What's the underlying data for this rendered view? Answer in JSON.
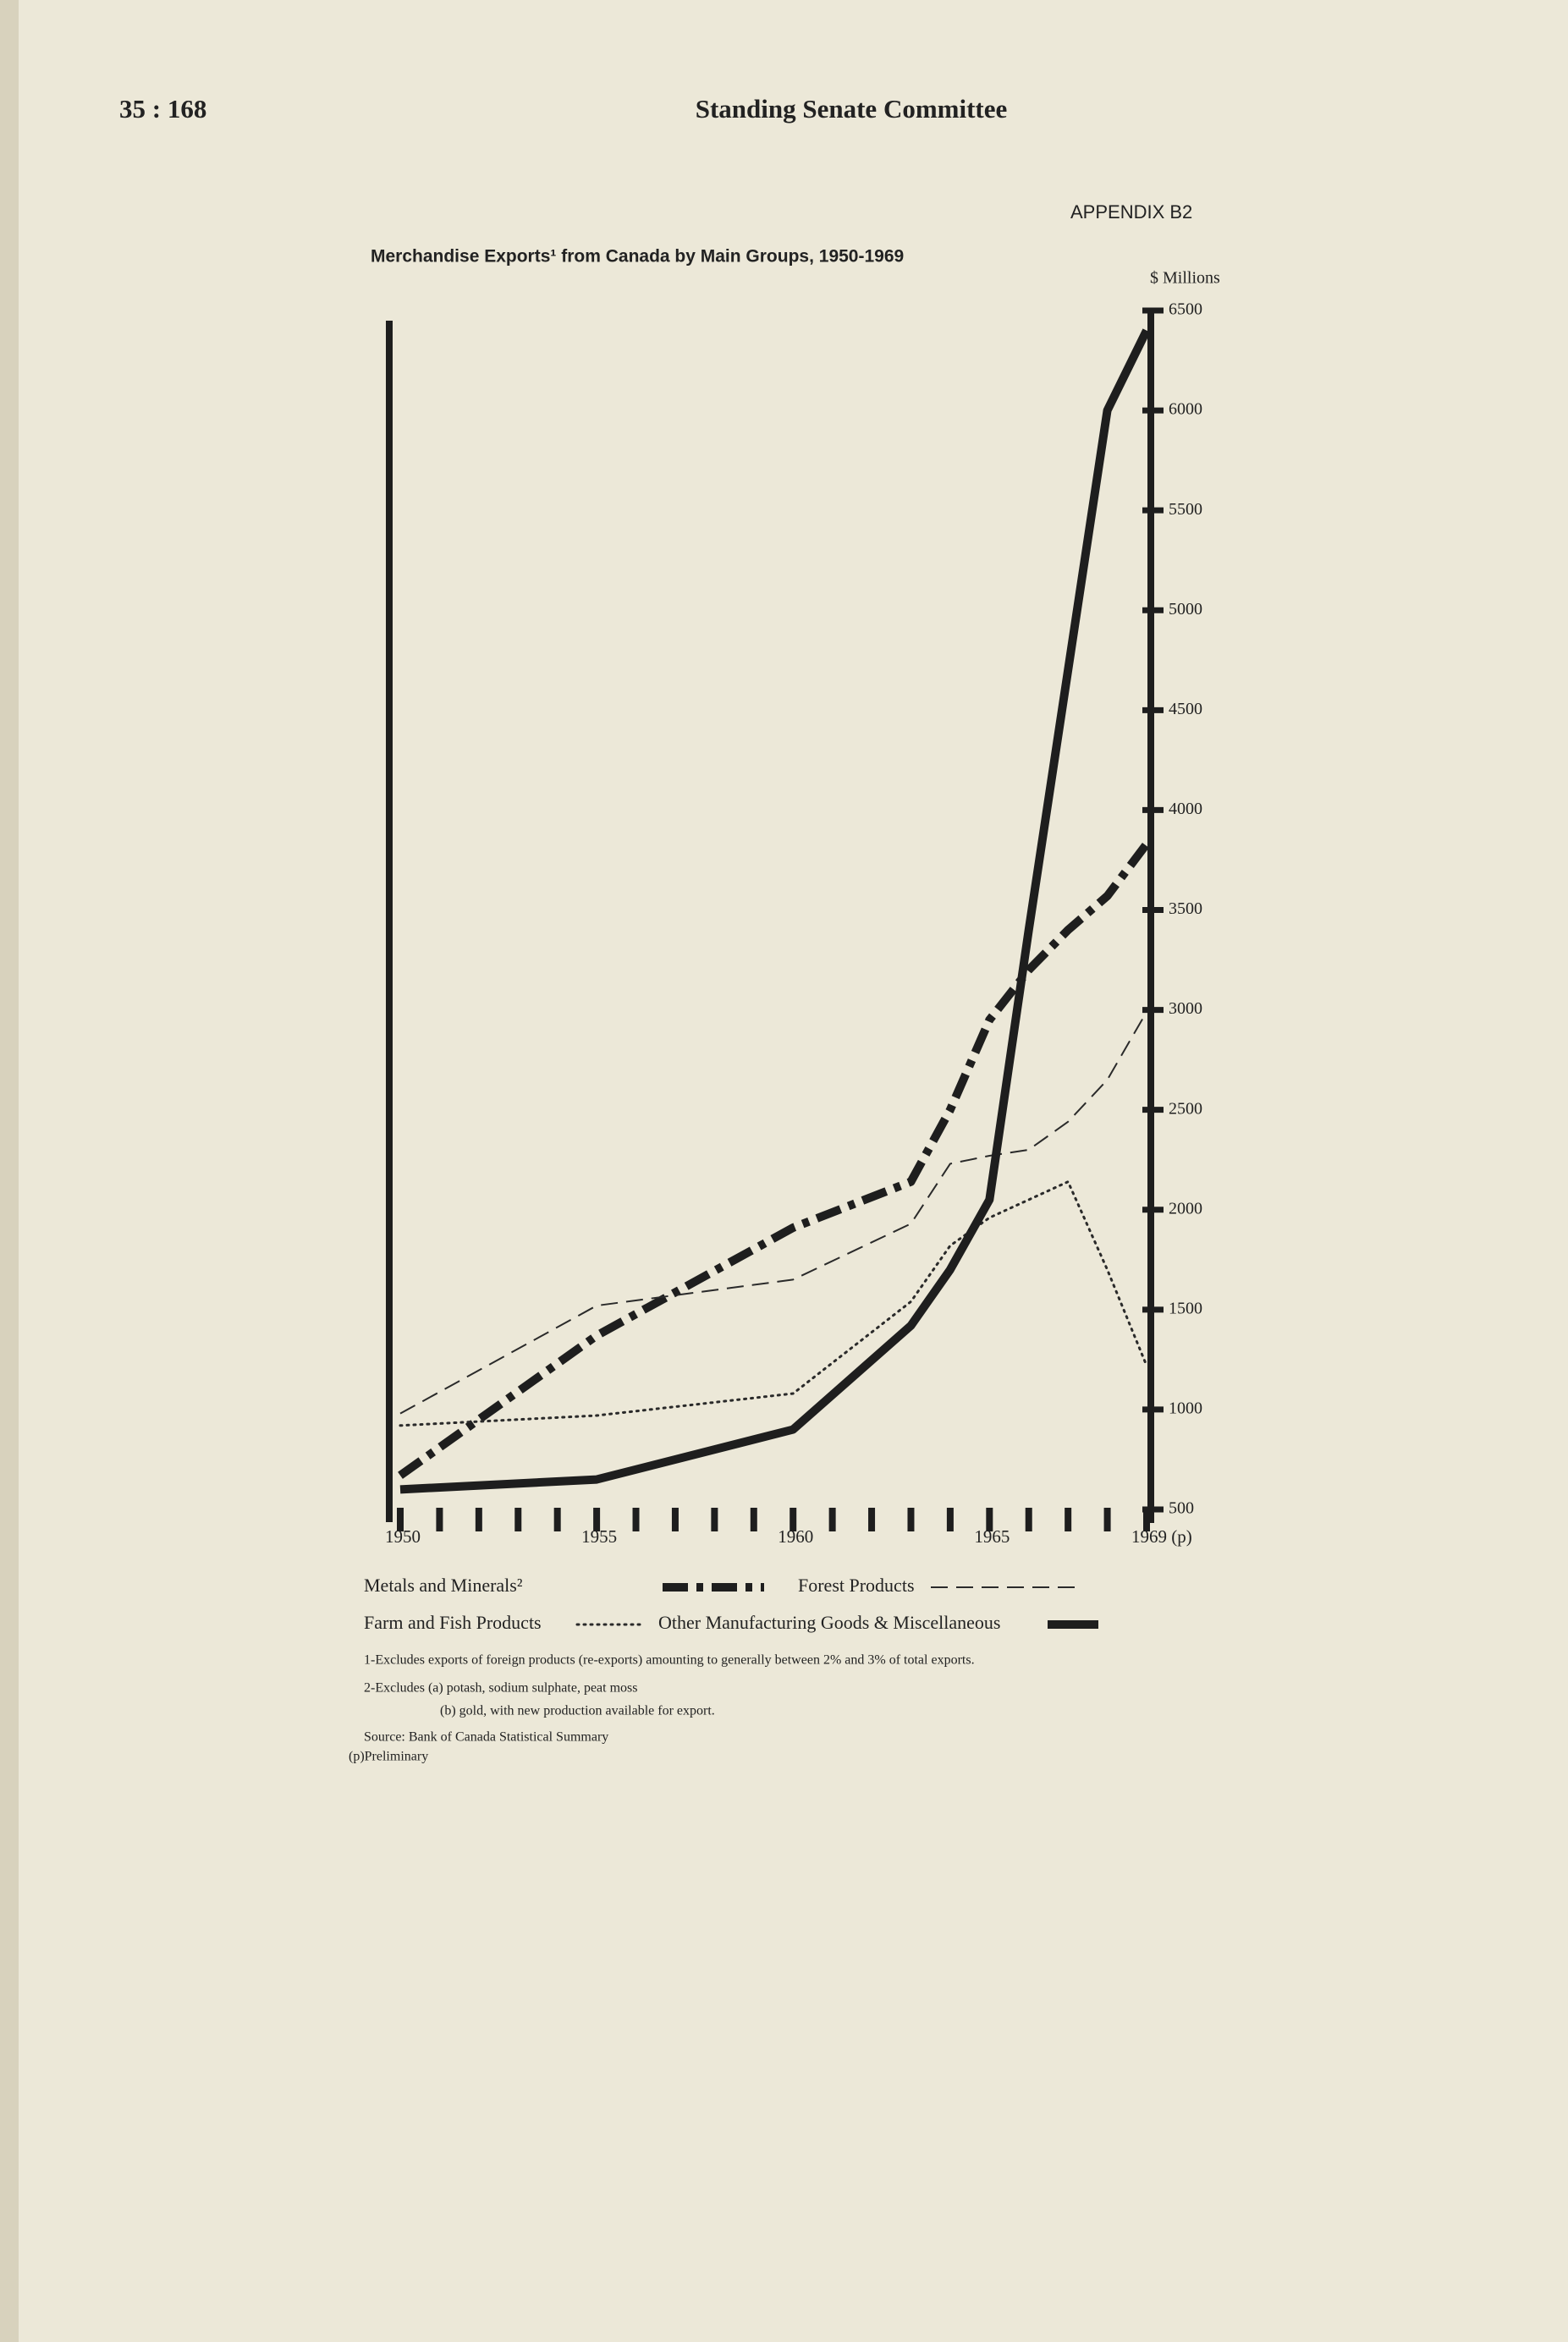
{
  "header": {
    "page": "35 : 168",
    "title": "Standing Senate Committee"
  },
  "appendix": "APPENDIX B2",
  "chart_data": {
    "type": "line",
    "title": "Merchandise Exports¹ from Canada by Main Groups, 1950-1969",
    "y_label": "$ Millions",
    "x": [
      1950,
      1955,
      1960,
      1963,
      1964,
      1965,
      1966,
      1967,
      1968,
      1969
    ],
    "xlim": [
      1950,
      1969
    ],
    "xticks": [
      1950,
      1955,
      1960,
      1965,
      {
        "value": 1969,
        "label": "1969 (p)"
      }
    ],
    "ylim": [
      500,
      6500
    ],
    "yticks": [
      500,
      1000,
      1500,
      2000,
      2500,
      3000,
      3500,
      4000,
      4500,
      5000,
      5500,
      6000,
      6500
    ],
    "series": [
      {
        "name": "Metals and Minerals²",
        "color": "#1e1e1e",
        "line_style": "dash-dot",
        "values": [
          670,
          1370,
          1910,
          2140,
          2500,
          2950,
          3200,
          3400,
          3570,
          3830
        ]
      },
      {
        "name": "Forest Products",
        "color": "#2a2a2a",
        "line_style": "dashed",
        "values": [
          980,
          1520,
          1650,
          1930,
          2230,
          2270,
          2300,
          2440,
          2650,
          2990
        ]
      },
      {
        "name": "Farm and Fish Products",
        "color": "#2a2a2a",
        "line_style": "dotted",
        "values": [
          920,
          970,
          1080,
          1540,
          1820,
          1960,
          2050,
          2140,
          1700,
          1220
        ]
      },
      {
        "name": "Other Manufacturing Goods & Miscellaneous",
        "color": "#1e1e1e",
        "line_style": "solid",
        "values": [
          600,
          650,
          900,
          1420,
          1700,
          2050,
          3400,
          4700,
          6000,
          6400
        ]
      }
    ]
  },
  "footnotes": [
    "1-Excludes exports of foreign products (re-exports) amounting to generally between 2% and 3% of total exports.",
    "2-Excludes (a) potash, sodium sulphate, peat moss",
    "(b) gold, with new production available for export."
  ],
  "source": "Source: Bank of Canada Statistical Summary",
  "preliminary": "(p)Preliminary"
}
